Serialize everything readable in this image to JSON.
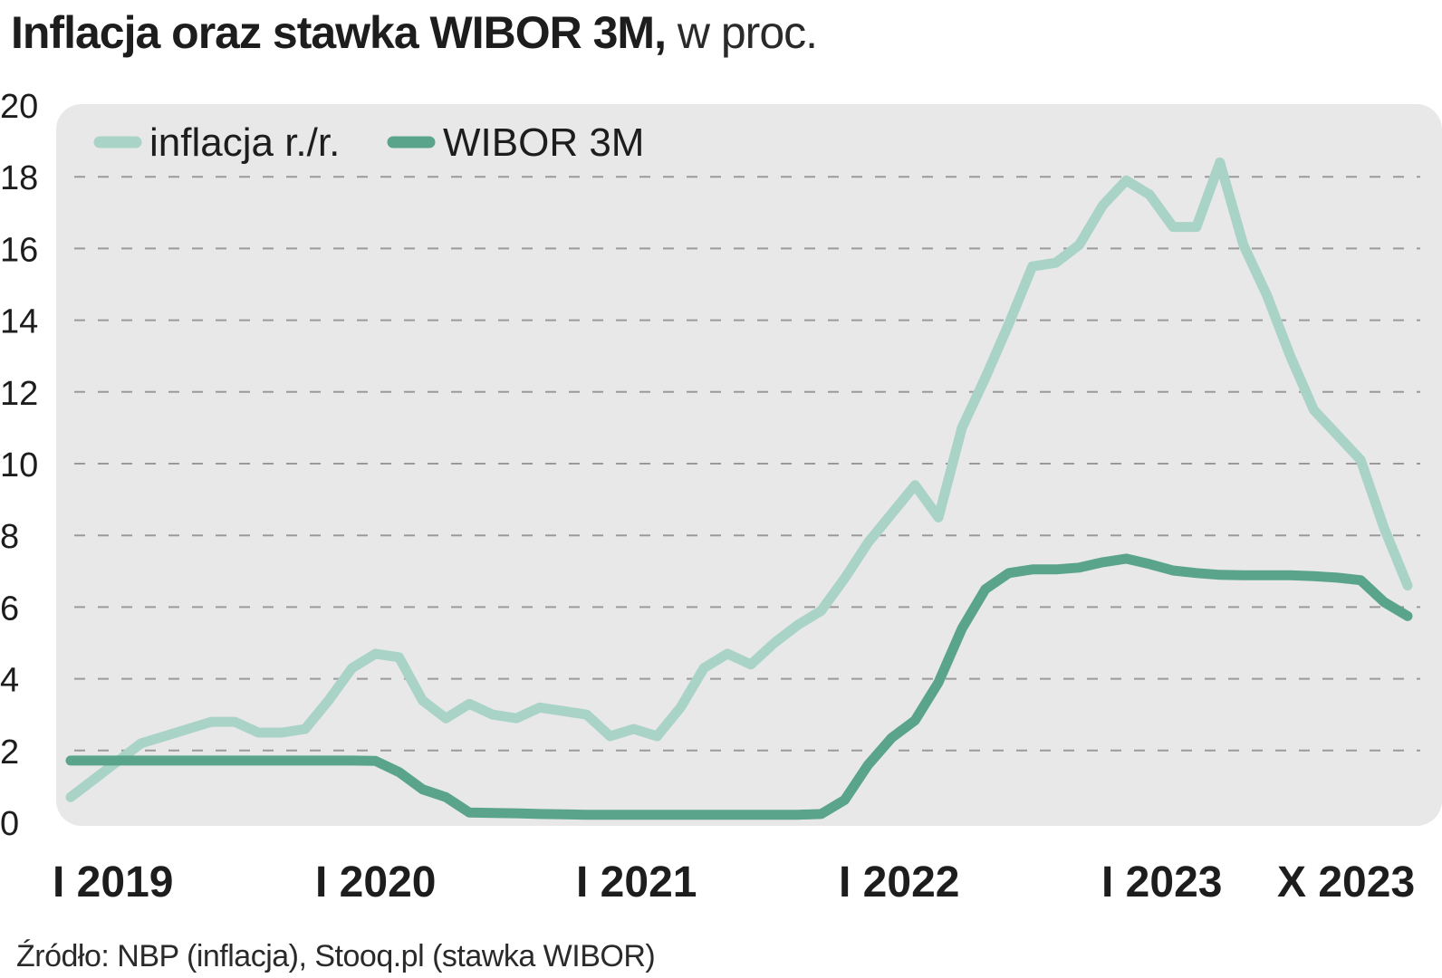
{
  "title": {
    "main": "Inflacja oraz stawka WIBOR 3M,",
    "unit": " w proc."
  },
  "source": "Źródło: NBP (inflacja), Stooq.pl (stawka WIBOR)",
  "colors": {
    "inflation": "#a9d3c6",
    "wibor": "#5aa48c",
    "panel_bg": "#e8e8e8",
    "grid": "#9a9a9a",
    "text": "#1d1d1d"
  },
  "chart_data": {
    "type": "line",
    "x": [
      "2019-01",
      "2019-02",
      "2019-03",
      "2019-04",
      "2019-05",
      "2019-06",
      "2019-07",
      "2019-08",
      "2019-09",
      "2019-10",
      "2019-11",
      "2019-12",
      "2020-01",
      "2020-02",
      "2020-03",
      "2020-04",
      "2020-05",
      "2020-06",
      "2020-07",
      "2020-08",
      "2020-09",
      "2020-10",
      "2020-11",
      "2020-12",
      "2021-01",
      "2021-02",
      "2021-03",
      "2021-04",
      "2021-05",
      "2021-06",
      "2021-07",
      "2021-08",
      "2021-09",
      "2021-10",
      "2021-11",
      "2021-12",
      "2022-01",
      "2022-02",
      "2022-03",
      "2022-04",
      "2022-05",
      "2022-06",
      "2022-07",
      "2022-08",
      "2022-09",
      "2022-10",
      "2022-11",
      "2022-12",
      "2023-01",
      "2023-02",
      "2023-03",
      "2023-04",
      "2023-05",
      "2023-06",
      "2023-07",
      "2023-08",
      "2023-09",
      "2023-10"
    ],
    "x_ticks": [
      {
        "x": "2019-01",
        "label": "I 2019"
      },
      {
        "x": "2020-01",
        "label": "I 2020"
      },
      {
        "x": "2021-01",
        "label": "I 2021"
      },
      {
        "x": "2022-01",
        "label": "I 2022"
      },
      {
        "x": "2023-01",
        "label": "I 2023"
      },
      {
        "x": "2023-10",
        "label": "X 2023"
      }
    ],
    "ylim": [
      0,
      20
    ],
    "y_ticks": [
      0,
      2,
      4,
      6,
      8,
      10,
      12,
      14,
      16,
      18,
      20
    ],
    "grid": true,
    "legend_position": "top-left",
    "series": [
      {
        "name": "inflacja r./r.",
        "key": "inflation",
        "values": [
          0.7,
          1.2,
          1.7,
          2.2,
          2.4,
          2.6,
          2.8,
          2.8,
          2.5,
          2.5,
          2.6,
          3.4,
          4.3,
          4.7,
          4.6,
          3.4,
          2.9,
          3.3,
          3.0,
          2.9,
          3.2,
          3.1,
          3.0,
          2.4,
          2.6,
          2.4,
          3.2,
          4.3,
          4.7,
          4.4,
          5.0,
          5.5,
          5.9,
          6.8,
          7.8,
          8.6,
          9.4,
          8.5,
          11.0,
          12.4,
          13.9,
          15.5,
          15.6,
          16.1,
          17.2,
          17.9,
          17.5,
          16.6,
          16.6,
          18.4,
          16.1,
          14.7,
          13.0,
          11.5,
          10.8,
          10.1,
          8.2,
          6.6
        ]
      },
      {
        "name": "WIBOR 3M",
        "key": "wibor",
        "values": [
          1.72,
          1.72,
          1.72,
          1.72,
          1.72,
          1.72,
          1.72,
          1.72,
          1.72,
          1.72,
          1.72,
          1.72,
          1.72,
          1.71,
          1.4,
          0.92,
          0.7,
          0.27,
          0.26,
          0.25,
          0.23,
          0.22,
          0.21,
          0.21,
          0.21,
          0.21,
          0.21,
          0.21,
          0.21,
          0.21,
          0.21,
          0.21,
          0.23,
          0.62,
          1.6,
          2.35,
          2.84,
          3.9,
          5.4,
          6.5,
          6.95,
          7.05,
          7.05,
          7.1,
          7.25,
          7.35,
          7.2,
          7.02,
          6.95,
          6.9,
          6.89,
          6.89,
          6.89,
          6.86,
          6.82,
          6.75,
          6.14,
          5.75
        ]
      }
    ]
  }
}
